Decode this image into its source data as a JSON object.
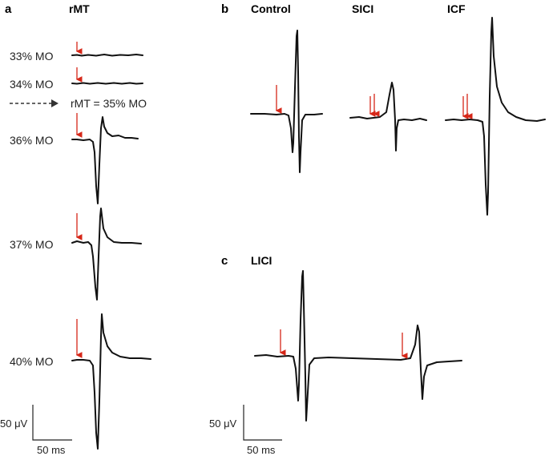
{
  "panels": {
    "a": {
      "letter": "a",
      "title": "rMT"
    },
    "b": {
      "letter": "b",
      "titles": [
        "Control",
        "SICI",
        "ICF"
      ]
    },
    "c": {
      "letter": "c",
      "title": "LICI"
    }
  },
  "rows_a": [
    "33% MO",
    "34% MO",
    "rMT = 35% MO",
    "36% MO",
    "37% MO",
    "40% MO"
  ],
  "scale": {
    "amplitude": "50 μV",
    "time": "50 ms"
  },
  "colors": {
    "trace": "#111111",
    "stimulus_arrow": "#d62718"
  }
}
